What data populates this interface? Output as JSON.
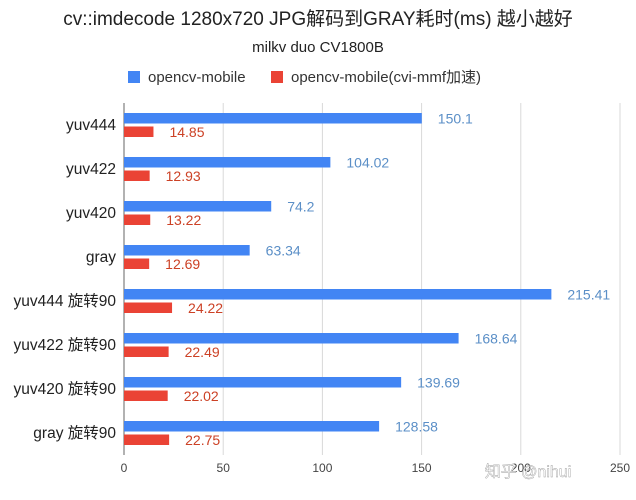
{
  "chart_data": {
    "type": "bar",
    "orientation": "horizontal",
    "title": "cv::imdecode 1280x720 JPG解码到GRAY耗时(ms) 越小越好",
    "subtitle": "milkv duo CV1800B",
    "categories": [
      "yuv444",
      "yuv422",
      "yuv420",
      "gray",
      "yuv444 旋转90",
      "yuv422 旋转90",
      "yuv420 旋转90",
      "gray 旋转90"
    ],
    "series": [
      {
        "name": "opencv-mobile",
        "color": "#4285f4",
        "label_color": "#5b8fc7",
        "values": [
          150.1,
          104.02,
          74.2,
          63.34,
          215.41,
          168.64,
          139.69,
          128.58
        ]
      },
      {
        "name": "opencv-mobile(cvi-mmf加速)",
        "color": "#ea4335",
        "label_color": "#cc4125",
        "values": [
          14.85,
          12.93,
          13.22,
          12.69,
          24.22,
          22.49,
          22.02,
          22.75
        ]
      }
    ],
    "xlim": [
      0,
      250
    ],
    "xticks": [
      "0",
      "50",
      "100",
      "150",
      "200",
      "250"
    ],
    "legend_position": "top",
    "grid": true
  },
  "watermark": "知乎 @nihui"
}
